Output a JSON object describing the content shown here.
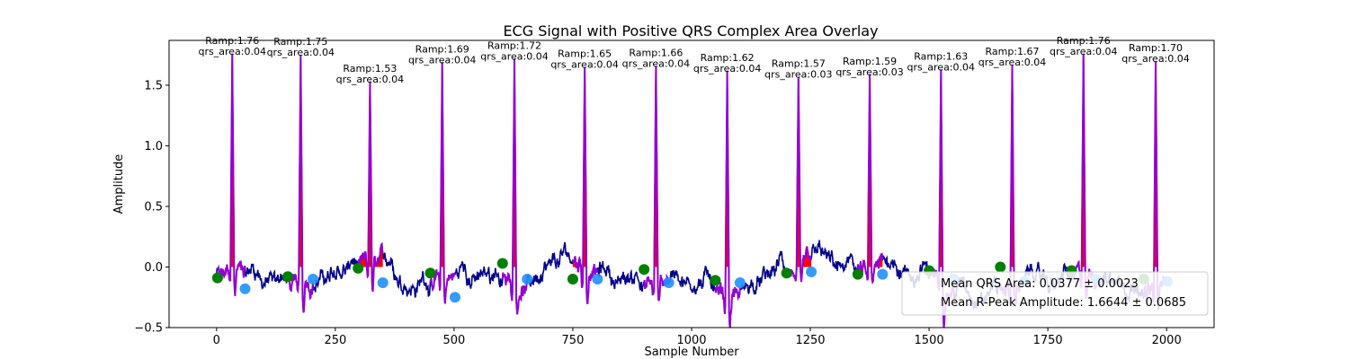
{
  "chart_data": {
    "type": "line",
    "title": "ECG Signal with Positive QRS Complex Area Overlay",
    "xlabel": "Sample Number",
    "ylabel": "Amplitude",
    "xlim": [
      -100,
      2100
    ],
    "ylim": [
      -0.5,
      1.87
    ],
    "x_ticks": [
      "0",
      "250",
      "500",
      "750",
      "1000",
      "1250",
      "1500",
      "1750",
      "2000"
    ],
    "x_tick_values": [
      0,
      250,
      500,
      750,
      1000,
      1250,
      1500,
      1750,
      2000
    ],
    "y_ticks": [
      "−0.5",
      "0.0",
      "0.5",
      "1.0",
      "1.5"
    ],
    "y_tick_values": [
      -0.5,
      0.0,
      0.5,
      1.0,
      1.5
    ],
    "grid": false,
    "legend_position": "lower-right",
    "colors": {
      "signal": "#00008b",
      "qrs_segment": "#9400d3",
      "qrs_area_fill": "#ff0000",
      "qrs_onset_marker": "#008000",
      "qrs_offset_marker": "#1e90ff"
    },
    "beats": [
      {
        "r_sample": 33,
        "r_amp": 1.76,
        "ramp_label": "Ramp:1.76",
        "area_label": "qrs_area:0.04",
        "onset_x": 2,
        "onset_y": -0.09,
        "offset_x": 60,
        "offset_y": -0.18
      },
      {
        "r_sample": 177,
        "r_amp": 1.75,
        "ramp_label": "Ramp:1.75",
        "area_label": "qrs_area:0.04",
        "onset_x": 150,
        "onset_y": -0.08,
        "offset_x": 203,
        "offset_y": -0.1
      },
      {
        "r_sample": 323,
        "r_amp": 1.53,
        "ramp_label": "Ramp:1.53",
        "area_label": "qrs_area:0.04",
        "onset_x": 298,
        "onset_y": -0.01,
        "offset_x": 350,
        "offset_y": -0.13
      },
      {
        "r_sample": 475,
        "r_amp": 1.69,
        "ramp_label": "Ramp:1.69",
        "area_label": "qrs_area:0.04",
        "onset_x": 450,
        "onset_y": -0.05,
        "offset_x": 502,
        "offset_y": -0.25
      },
      {
        "r_sample": 627,
        "r_amp": 1.72,
        "ramp_label": "Ramp:1.72",
        "area_label": "qrs_area:0.04",
        "onset_x": 602,
        "onset_y": 0.03,
        "offset_x": 654,
        "offset_y": -0.1
      },
      {
        "r_sample": 775,
        "r_amp": 1.65,
        "ramp_label": "Ramp:1.65",
        "area_label": "qrs_area:0.04",
        "onset_x": 750,
        "onset_y": -0.1,
        "offset_x": 802,
        "offset_y": -0.1
      },
      {
        "r_sample": 925,
        "r_amp": 1.66,
        "ramp_label": "Ramp:1.66",
        "area_label": "qrs_area:0.04",
        "onset_x": 900,
        "onset_y": -0.02,
        "offset_x": 952,
        "offset_y": -0.13
      },
      {
        "r_sample": 1075,
        "r_amp": 1.62,
        "ramp_label": "Ramp:1.62",
        "area_label": "qrs_area:0.04",
        "onset_x": 1050,
        "onset_y": -0.11,
        "offset_x": 1102,
        "offset_y": -0.13
      },
      {
        "r_sample": 1225,
        "r_amp": 1.57,
        "ramp_label": "Ramp:1.57",
        "area_label": "qrs_area:0.03",
        "onset_x": 1200,
        "onset_y": -0.05,
        "offset_x": 1252,
        "offset_y": -0.04
      },
      {
        "r_sample": 1375,
        "r_amp": 1.59,
        "ramp_label": "Ramp:1.59",
        "area_label": "qrs_area:0.03",
        "onset_x": 1350,
        "onset_y": -0.06,
        "offset_x": 1402,
        "offset_y": -0.06
      },
      {
        "r_sample": 1525,
        "r_amp": 1.63,
        "ramp_label": "Ramp:1.63",
        "area_label": "qrs_area:0.04",
        "onset_x": 1500,
        "onset_y": -0.03,
        "offset_x": 1552,
        "offset_y": -0.1
      },
      {
        "r_sample": 1675,
        "r_amp": 1.67,
        "ramp_label": "Ramp:1.67",
        "area_label": "qrs_area:0.04",
        "onset_x": 1650,
        "onset_y": 0.0,
        "offset_x": 1702,
        "offset_y": -0.12
      },
      {
        "r_sample": 1825,
        "r_amp": 1.76,
        "ramp_label": "Ramp:1.76",
        "area_label": "qrs_area:0.04",
        "onset_x": 1800,
        "onset_y": -0.03,
        "offset_x": 1852,
        "offset_y": -0.1
      },
      {
        "r_sample": 1977,
        "r_amp": 1.7,
        "ramp_label": "Ramp:1.70",
        "area_label": "qrs_area:0.04",
        "onset_x": 1952,
        "onset_y": -0.1,
        "offset_x": 2002,
        "offset_y": -0.12
      }
    ],
    "legend": {
      "mean_qrs_area": "Mean QRS Area: 0.0377 ± 0.0023",
      "mean_r_amp": "Mean R-Peak Amplitude: 1.6644 ± 0.0685"
    }
  }
}
